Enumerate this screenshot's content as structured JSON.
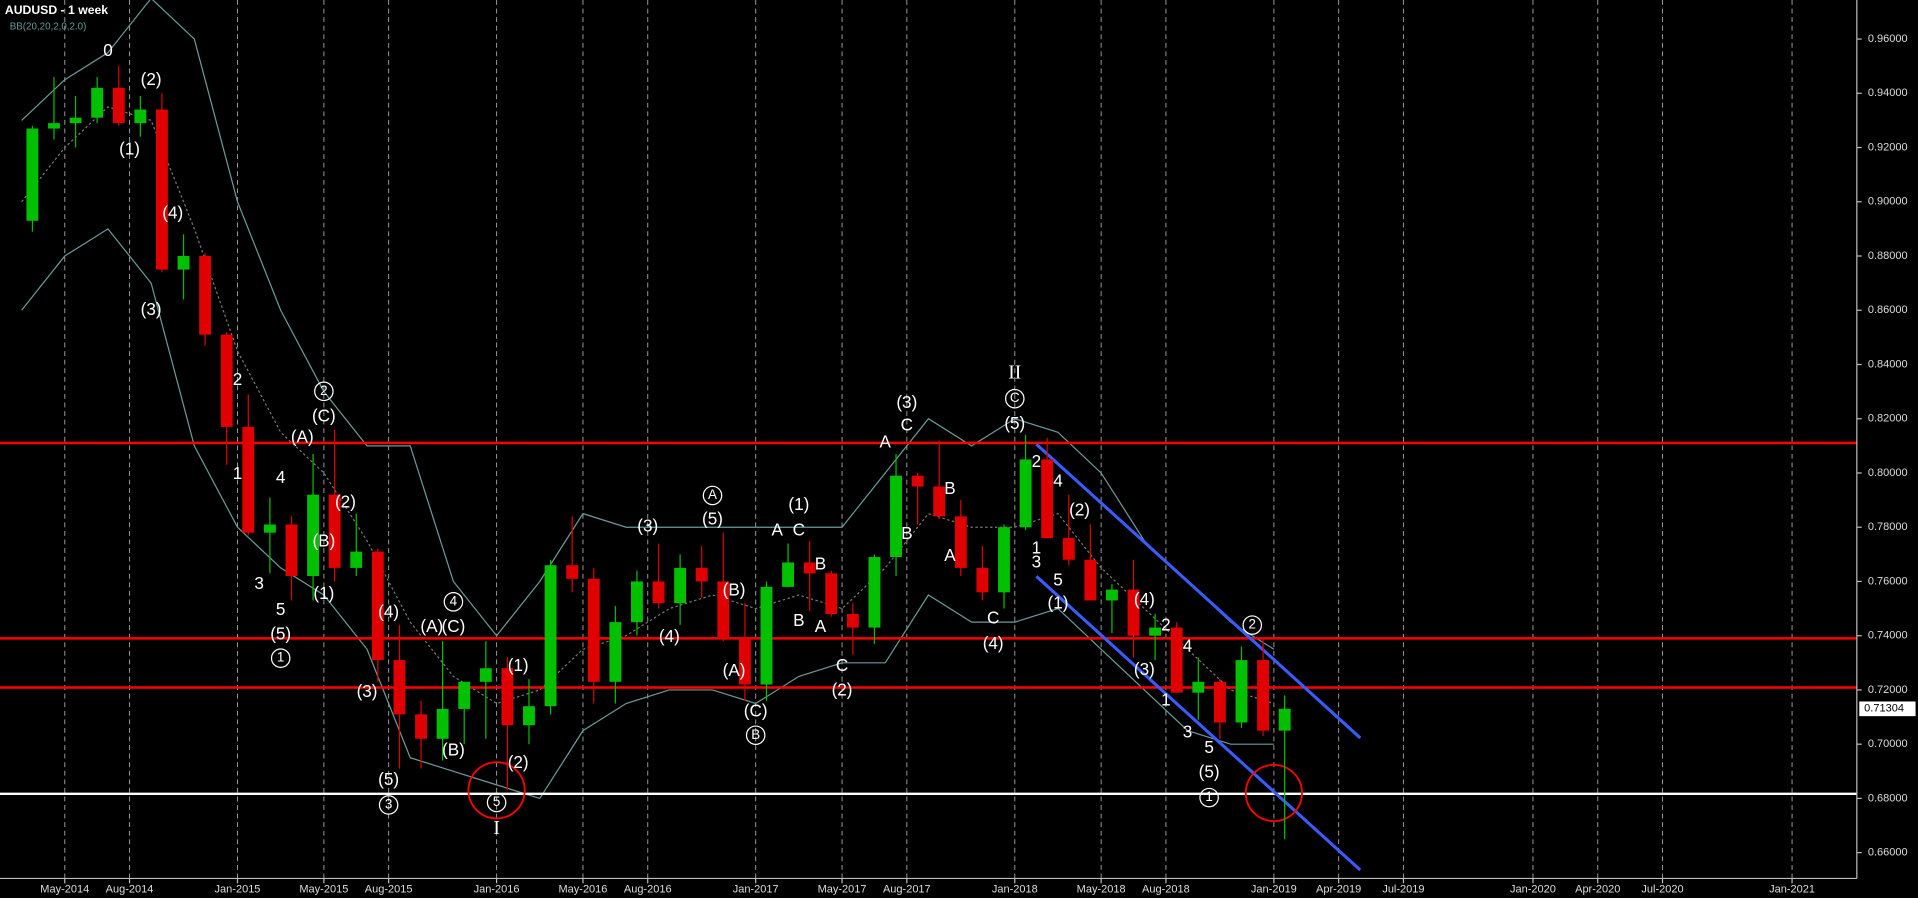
{
  "chart_data": {
    "type": "candlestick",
    "title": "AUDUSD - 1 week",
    "subtitle": "BB(20,20,2,0,2.0)",
    "up_color": "#00c000",
    "down_color": "#e00000",
    "grid": true,
    "x": [
      "Mar-2014",
      "Apr-2014",
      "May-2014",
      "Jun-2014",
      "Jul-2014",
      "Aug-2014",
      "Sep-2014",
      "Oct-2014",
      "Nov-2014",
      "Dec-2014",
      "Jan-2015",
      "Feb-2015",
      "Mar-2015",
      "Apr-2015",
      "May-2015",
      "Jun-2015",
      "Jul-2015",
      "Aug-2015",
      "Sep-2015",
      "Oct-2015",
      "Nov-2015",
      "Dec-2015",
      "Jan-2016",
      "Feb-2016",
      "Mar-2016",
      "Apr-2016",
      "May-2016",
      "Jun-2016",
      "Jul-2016",
      "Aug-2016",
      "Sep-2016",
      "Oct-2016",
      "Nov-2016",
      "Dec-2016",
      "Jan-2017",
      "Feb-2017",
      "Mar-2017",
      "Apr-2017",
      "May-2017",
      "Jun-2017",
      "Jul-2017",
      "Aug-2017",
      "Sep-2017",
      "Oct-2017",
      "Nov-2017",
      "Dec-2017",
      "Jan-2018",
      "Feb-2018",
      "Mar-2018",
      "Apr-2018",
      "May-2018",
      "Jun-2018",
      "Jul-2018",
      "Aug-2018",
      "Sep-2018",
      "Oct-2018",
      "Nov-2018",
      "Dec-2018",
      "Jan-2019"
    ],
    "open": [
      0.893,
      0.927,
      0.929,
      0.931,
      0.942,
      0.929,
      0.934,
      0.875,
      0.88,
      0.851,
      0.817,
      0.778,
      0.781,
      0.762,
      0.792,
      0.765,
      0.771,
      0.731,
      0.711,
      0.702,
      0.713,
      0.723,
      0.728,
      0.707,
      0.714,
      0.766,
      0.761,
      0.723,
      0.745,
      0.76,
      0.752,
      0.765,
      0.76,
      0.739,
      0.722,
      0.758,
      0.767,
      0.763,
      0.748,
      0.743,
      0.769,
      0.799,
      0.795,
      0.784,
      0.765,
      0.756,
      0.78,
      0.805,
      0.776,
      0.768,
      0.753,
      0.757,
      0.74,
      0.743,
      0.719,
      0.723,
      0.708,
      0.731,
      0.705
    ],
    "high": [
      0.928,
      0.946,
      0.939,
      0.946,
      0.95,
      0.939,
      0.94,
      0.888,
      0.881,
      0.852,
      0.829,
      0.791,
      0.784,
      0.807,
      0.816,
      0.785,
      0.772,
      0.744,
      0.716,
      0.738,
      0.723,
      0.738,
      0.732,
      0.724,
      0.768,
      0.784,
      0.765,
      0.751,
      0.764,
      0.774,
      0.77,
      0.773,
      0.778,
      0.752,
      0.76,
      0.774,
      0.775,
      0.764,
      0.752,
      0.77,
      0.807,
      0.8,
      0.812,
      0.79,
      0.773,
      0.781,
      0.814,
      0.813,
      0.792,
      0.781,
      0.759,
      0.768,
      0.748,
      0.745,
      0.732,
      0.724,
      0.736,
      0.739,
      0.718
    ],
    "low": [
      0.889,
      0.923,
      0.92,
      0.929,
      0.928,
      0.924,
      0.874,
      0.864,
      0.847,
      0.803,
      0.777,
      0.763,
      0.753,
      0.753,
      0.76,
      0.762,
      0.723,
      0.691,
      0.691,
      0.694,
      0.7,
      0.702,
      0.683,
      0.7,
      0.711,
      0.756,
      0.715,
      0.715,
      0.74,
      0.75,
      0.744,
      0.754,
      0.738,
      0.716,
      0.716,
      0.758,
      0.749,
      0.747,
      0.733,
      0.737,
      0.762,
      0.781,
      0.783,
      0.762,
      0.753,
      0.75,
      0.779,
      0.776,
      0.766,
      0.753,
      0.741,
      0.732,
      0.731,
      0.72,
      0.709,
      0.702,
      0.706,
      0.703,
      0.665
    ],
    "close": [
      0.927,
      0.929,
      0.931,
      0.942,
      0.929,
      0.934,
      0.875,
      0.88,
      0.851,
      0.817,
      0.778,
      0.781,
      0.762,
      0.792,
      0.765,
      0.771,
      0.731,
      0.711,
      0.702,
      0.713,
      0.723,
      0.728,
      0.707,
      0.714,
      0.766,
      0.761,
      0.723,
      0.745,
      0.76,
      0.752,
      0.765,
      0.76,
      0.739,
      0.722,
      0.758,
      0.767,
      0.763,
      0.748,
      0.743,
      0.769,
      0.799,
      0.795,
      0.784,
      0.765,
      0.756,
      0.78,
      0.805,
      0.776,
      0.768,
      0.753,
      0.757,
      0.74,
      0.743,
      0.719,
      0.723,
      0.708,
      0.731,
      0.705,
      0.71304
    ],
    "bands": {
      "color": "#6a9a9a",
      "middle_color": "#777777",
      "x": [
        "Mar-2014",
        "May-2014",
        "Jul-2014",
        "Sep-2014",
        "Nov-2014",
        "Jan-2015",
        "Mar-2015",
        "May-2015",
        "Jul-2015",
        "Sep-2015",
        "Nov-2015",
        "Jan-2016",
        "Mar-2016",
        "May-2016",
        "Jul-2016",
        "Sep-2016",
        "Nov-2016",
        "Jan-2017",
        "Mar-2017",
        "May-2017",
        "Jul-2017",
        "Sep-2017",
        "Nov-2017",
        "Jan-2018",
        "Mar-2018",
        "May-2018",
        "Jul-2018",
        "Sep-2018",
        "Nov-2018",
        "Jan-2019"
      ],
      "upper": [
        0.93,
        0.945,
        0.955,
        0.975,
        0.96,
        0.9,
        0.86,
        0.83,
        0.81,
        0.81,
        0.76,
        0.74,
        0.76,
        0.785,
        0.78,
        0.78,
        0.78,
        0.78,
        0.78,
        0.78,
        0.8,
        0.82,
        0.81,
        0.82,
        0.815,
        0.8,
        0.775,
        0.76,
        0.745,
        0.735
      ],
      "middle": [
        0.9,
        0.92,
        0.935,
        0.93,
        0.89,
        0.845,
        0.815,
        0.8,
        0.775,
        0.745,
        0.725,
        0.715,
        0.72,
        0.735,
        0.74,
        0.75,
        0.755,
        0.75,
        0.755,
        0.75,
        0.765,
        0.785,
        0.78,
        0.78,
        0.785,
        0.765,
        0.75,
        0.735,
        0.72,
        0.715
      ],
      "lower": [
        0.86,
        0.88,
        0.89,
        0.87,
        0.81,
        0.78,
        0.765,
        0.755,
        0.735,
        0.695,
        0.69,
        0.685,
        0.68,
        0.705,
        0.715,
        0.72,
        0.72,
        0.715,
        0.725,
        0.73,
        0.73,
        0.755,
        0.745,
        0.745,
        0.75,
        0.735,
        0.72,
        0.705,
        0.7,
        0.7
      ]
    },
    "levels": [
      {
        "value": 0.8111,
        "color": "#ff0000"
      },
      {
        "value": 0.739,
        "color": "#ff0000"
      },
      {
        "value": 0.7209,
        "color": "#ff0000"
      },
      {
        "value": 0.6817,
        "color": "#ffffff"
      }
    ],
    "channel": {
      "color": "#3a5cff",
      "lines": [
        {
          "x": [
            "Feb-2018",
            "May-2019"
          ],
          "y": [
            0.8106,
            0.7023
          ]
        },
        {
          "x": [
            "Feb-2018",
            "May-2019"
          ],
          "y": [
            0.7619,
            0.6536
          ]
        }
      ]
    },
    "highlights": {
      "color": "#ff0000",
      "points": [
        {
          "x": "Jan-2016",
          "y": 0.683
        },
        {
          "x": "Jan-2019",
          "y": 0.682
        }
      ]
    },
    "annotations": [
      {
        "text": "0",
        "x": "Jul-2014",
        "y": 0.9555
      },
      {
        "text": "(2)",
        "x": "Sep-2014",
        "y": 0.9447
      },
      {
        "text": "(1)",
        "x": "Aug-2014",
        "y": 0.919
      },
      {
        "text": "(4)",
        "x": "Oct-2014",
        "y": 0.8955
      },
      {
        "text": "(3)",
        "x": "Sep-2014",
        "y": 0.8599
      },
      {
        "text": "2",
        "x": "Jan-2015",
        "y": 0.8341
      },
      {
        "text": "1",
        "x": "Jan-2015",
        "y": 0.7994
      },
      {
        "text": "2",
        "x": "May-2015",
        "y": 0.8301,
        "style": "circled"
      },
      {
        "text": "(C)",
        "x": "May-2015",
        "y": 0.8206
      },
      {
        "text": "(A)",
        "x": "Apr-2015",
        "y": 0.8129
      },
      {
        "text": "4",
        "x": "Mar-2015",
        "y": 0.798
      },
      {
        "text": "(2)",
        "x": "Jun-2015",
        "y": 0.789
      },
      {
        "text": "(B)",
        "x": "May-2015",
        "y": 0.7746
      },
      {
        "text": "3",
        "x": "Feb-2015",
        "y": 0.7588
      },
      {
        "text": "(1)",
        "x": "May-2015",
        "y": 0.7552
      },
      {
        "text": "5",
        "x": "Mar-2015",
        "y": 0.7493
      },
      {
        "text": "(5)",
        "x": "Mar-2015",
        "y": 0.7403
      },
      {
        "text": "1",
        "x": "Mar-2015",
        "y": 0.7317,
        "style": "circled"
      },
      {
        "text": "(4)",
        "x": "Aug-2015",
        "y": 0.7484
      },
      {
        "text": "(A)",
        "x": "Oct-2015",
        "y": 0.743
      },
      {
        "text": "4",
        "x": "Nov-2015",
        "y": 0.7525,
        "style": "circled"
      },
      {
        "text": "(C)",
        "x": "Nov-2015",
        "y": 0.743
      },
      {
        "text": "(3)",
        "x": "Jul-2015",
        "y": 0.7191
      },
      {
        "text": "(1)",
        "x": "Feb-2016",
        "y": 0.7286
      },
      {
        "text": "(B)",
        "x": "Nov-2015",
        "y": 0.6974
      },
      {
        "text": "(2)",
        "x": "Feb-2016",
        "y": 0.6929
      },
      {
        "text": "(5)",
        "x": "Aug-2015",
        "y": 0.6866
      },
      {
        "text": "3",
        "x": "Aug-2015",
        "y": 0.6776,
        "style": "circled"
      },
      {
        "text": "5",
        "x": "Jan-2016",
        "y": 0.6785,
        "style": "circled"
      },
      {
        "text": "I",
        "x": "Jan-2016",
        "y": 0.6686,
        "style": "roman"
      },
      {
        "text": "(3)",
        "x": "Aug-2016",
        "y": 0.78
      },
      {
        "text": "A",
        "x": "Nov-2016",
        "y": 0.7917,
        "style": "circled"
      },
      {
        "text": "(5)",
        "x": "Nov-2016",
        "y": 0.7827
      },
      {
        "text": "(4)",
        "x": "Sep-2016",
        "y": 0.7394
      },
      {
        "text": "(B)",
        "x": "Dec-2016",
        "y": 0.7565
      },
      {
        "text": "(A)",
        "x": "Dec-2016",
        "y": 0.7268
      },
      {
        "text": "(C)",
        "x": "Jan-2017",
        "y": 0.7119
      },
      {
        "text": "B",
        "x": "Jan-2017",
        "y": 0.7033,
        "style": "circled"
      },
      {
        "text": "(1)",
        "x": "Mar-2017",
        "y": 0.7881
      },
      {
        "text": "A",
        "x": "Feb-2017",
        "y": 0.7786
      },
      {
        "text": "C",
        "x": "Mar-2017",
        "y": 0.7786
      },
      {
        "text": "B",
        "x": "Apr-2017",
        "y": 0.766
      },
      {
        "text": "B",
        "x": "Mar-2017",
        "y": 0.7453
      },
      {
        "text": "A",
        "x": "Apr-2017",
        "y": 0.743
      },
      {
        "text": "C",
        "x": "May-2017",
        "y": 0.7286
      },
      {
        "text": "(2)",
        "x": "May-2017",
        "y": 0.7196
      },
      {
        "text": "(3)",
        "x": "Aug-2017",
        "y": 0.8256
      },
      {
        "text": "A",
        "x": "Jul-2017",
        "y": 0.8111
      },
      {
        "text": "C",
        "x": "Aug-2017",
        "y": 0.8174
      },
      {
        "text": "B",
        "x": "Oct-2017",
        "y": 0.794
      },
      {
        "text": "B",
        "x": "Aug-2017",
        "y": 0.7773
      },
      {
        "text": "A",
        "x": "Oct-2017",
        "y": 0.7692
      },
      {
        "text": "C",
        "x": "Dec-2017",
        "y": 0.7462
      },
      {
        "text": "(4)",
        "x": "Dec-2017",
        "y": 0.7367
      },
      {
        "text": "II",
        "x": "Jan-2018",
        "y": 0.8364,
        "style": "roman"
      },
      {
        "text": "C",
        "x": "Jan-2018",
        "y": 0.8274,
        "style": "circled"
      },
      {
        "text": "(5)",
        "x": "Jan-2018",
        "y": 0.8179
      },
      {
        "text": "2",
        "x": "Feb-2018",
        "y": 0.8039
      },
      {
        "text": "4",
        "x": "Mar-2018",
        "y": 0.7967
      },
      {
        "text": "(2)",
        "x": "Apr-2018",
        "y": 0.7859
      },
      {
        "text": "1",
        "x": "Feb-2018",
        "y": 0.7719
      },
      {
        "text": "3",
        "x": "Feb-2018",
        "y": 0.7669
      },
      {
        "text": "5",
        "x": "Mar-2018",
        "y": 0.7601
      },
      {
        "text": "(1)",
        "x": "Mar-2018",
        "y": 0.7516
      },
      {
        "text": "(4)",
        "x": "Jul-2018",
        "y": 0.7529
      },
      {
        "text": "2",
        "x": "Aug-2018",
        "y": 0.7435
      },
      {
        "text": "4",
        "x": "Sep-2018",
        "y": 0.7358
      },
      {
        "text": "(3)",
        "x": "Jul-2018",
        "y": 0.7272
      },
      {
        "text": "1",
        "x": "Aug-2018",
        "y": 0.7159
      },
      {
        "text": "3",
        "x": "Sep-2018",
        "y": 0.7042
      },
      {
        "text": "5",
        "x": "Oct-2018",
        "y": 0.6984
      },
      {
        "text": "(5)",
        "x": "Oct-2018",
        "y": 0.6893
      },
      {
        "text": "1",
        "x": "Oct-2018",
        "y": 0.6803,
        "style": "circled"
      },
      {
        "text": "2",
        "x": "Dec-2018",
        "y": 0.7439,
        "style": "circled"
      }
    ],
    "xlim": [
      "Feb-2014",
      "Apr-2021"
    ],
    "xticks": [
      "May-2014",
      "Aug-2014",
      "Jan-2015",
      "May-2015",
      "Aug-2015",
      "Jan-2016",
      "May-2016",
      "Aug-2016",
      "Jan-2017",
      "May-2017",
      "Aug-2017",
      "Jan-2018",
      "May-2018",
      "Aug-2018",
      "Jan-2019",
      "Apr-2019",
      "Jul-2019",
      "Jan-2020",
      "Apr-2020",
      "Jul-2020",
      "Jan-2021"
    ],
    "ylim": [
      0.6505,
      0.9744
    ],
    "yticks": [
      {
        "value": 0.66,
        "label": "0.66000"
      },
      {
        "value": 0.68,
        "label": "0.68000"
      },
      {
        "value": 0.7,
        "label": "0.70000"
      },
      {
        "value": 0.72,
        "label": "0.72000"
      },
      {
        "value": 0.74,
        "label": "0.74000"
      },
      {
        "value": 0.76,
        "label": "0.76000"
      },
      {
        "value": 0.78,
        "label": "0.78000"
      },
      {
        "value": 0.8,
        "label": "0.80000"
      },
      {
        "value": 0.82,
        "label": "0.82000"
      },
      {
        "value": 0.84,
        "label": "0.84000"
      },
      {
        "value": 0.86,
        "label": "0.86000"
      },
      {
        "value": 0.88,
        "label": "0.88000"
      },
      {
        "value": 0.9,
        "label": "0.90000"
      },
      {
        "value": 0.92,
        "label": "0.92000"
      },
      {
        "value": 0.94,
        "label": "0.94000"
      },
      {
        "value": 0.96,
        "label": "0.96000"
      }
    ]
  }
}
